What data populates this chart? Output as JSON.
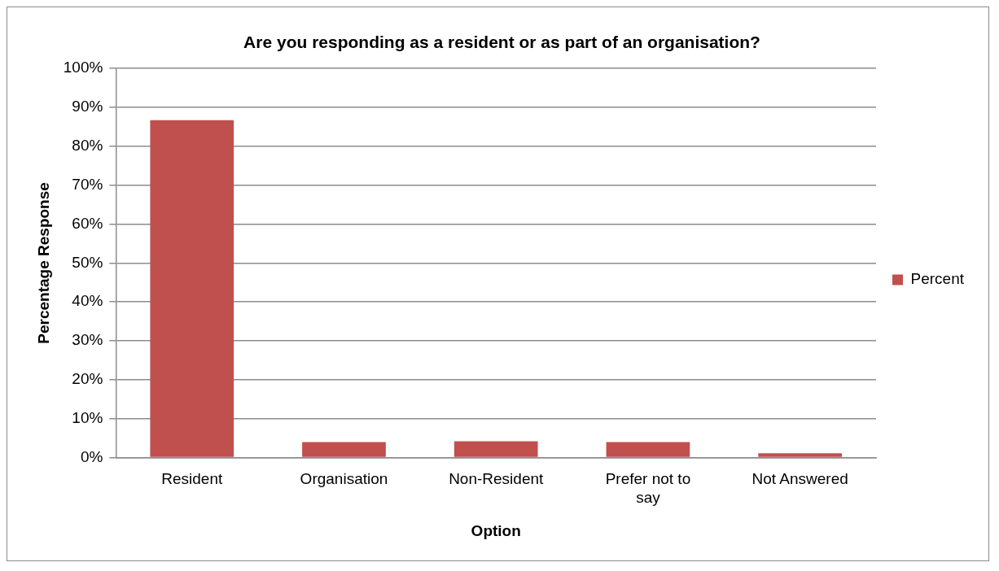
{
  "chart_data": {
    "type": "bar",
    "title": "Are you responding as a resident or as part of an organisation?",
    "xlabel": "Option",
    "ylabel": "Percentage Response",
    "categories": [
      "Resident",
      "Organisation",
      "Non-Resident",
      "Prefer not to say",
      "Not Answered"
    ],
    "series": [
      {
        "name": "Percent",
        "color": "#c0504d",
        "values": [
          86.7,
          4.0,
          4.2,
          4.0,
          1.1
        ]
      }
    ],
    "ylim": [
      0,
      100
    ],
    "yticks": [
      {
        "value": 0,
        "label": "0%"
      },
      {
        "value": 10,
        "label": "10%"
      },
      {
        "value": 20,
        "label": "20%"
      },
      {
        "value": 30,
        "label": "30%"
      },
      {
        "value": 40,
        "label": "40%"
      },
      {
        "value": 50,
        "label": "50%"
      },
      {
        "value": 60,
        "label": "60%"
      },
      {
        "value": 70,
        "label": "70%"
      },
      {
        "value": 80,
        "label": "80%"
      },
      {
        "value": 90,
        "label": "90%"
      },
      {
        "value": 100,
        "label": "100%"
      }
    ],
    "grid": "y",
    "legend": "right"
  }
}
